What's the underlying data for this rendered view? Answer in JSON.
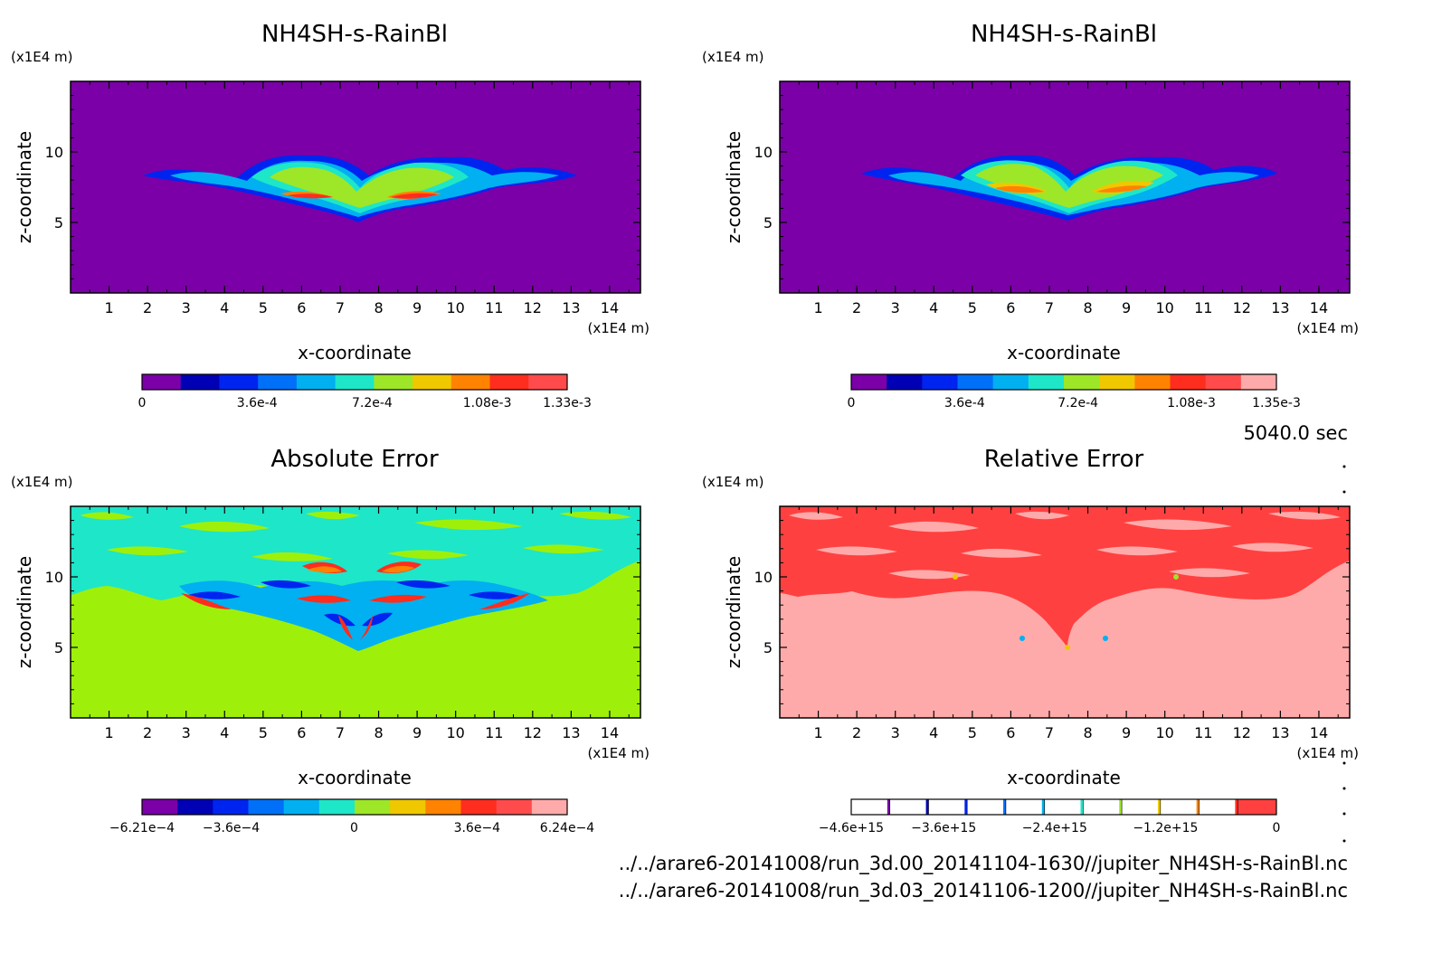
{
  "time_label": "5040.0 sec",
  "footer": {
    "file1": "../../arare6-20141008/run_3d.00_20141104-1630//jupiter_NH4SH-s-RainBl.nc",
    "file2": "../../arare6-20141008/run_3d.03_20141106-1200//jupiter_NH4SH-s-RainBl.nc"
  },
  "chart_data": [
    {
      "type": "heatmap",
      "title": "NH4SH-s-RainBl",
      "xlabel": "x-coordinate",
      "ylabel": "z-coordinate",
      "x_unit": "(x1E4 m)",
      "y_unit": "(x1E4 m)",
      "xlim": [
        0,
        14.8
      ],
      "ylim": [
        0,
        15
      ],
      "x_ticks": [
        "1",
        "2",
        "3",
        "4",
        "5",
        "6",
        "7",
        "8",
        "9",
        "10",
        "11",
        "12",
        "13",
        "14"
      ],
      "y_ticks": [
        "5",
        "10"
      ],
      "colorbar": {
        "colors": [
          "#7b00a8",
          "#0000b4",
          "#0024f0",
          "#0070f8",
          "#00b0f0",
          "#1ee6c8",
          "#9ee628",
          "#f0c800",
          "#ff8200",
          "#ff2d1e",
          "#ff4b4b"
        ],
        "tick_labels": [
          "0",
          "3.6e-4",
          "7.2e-4",
          "1.08e-3",
          "1.33e-3"
        ],
        "tick_values": [
          0,
          0.00036,
          0.00072,
          0.00108,
          0.00133
        ],
        "range": [
          0,
          0.00133
        ]
      },
      "background": "#7b00a8"
    },
    {
      "type": "heatmap",
      "title": "NH4SH-s-RainBl",
      "xlabel": "x-coordinate",
      "ylabel": "z-coordinate",
      "x_unit": "(x1E4 m)",
      "y_unit": "(x1E4 m)",
      "xlim": [
        0,
        14.8
      ],
      "ylim": [
        0,
        15
      ],
      "x_ticks": [
        "1",
        "2",
        "3",
        "4",
        "5",
        "6",
        "7",
        "8",
        "9",
        "10",
        "11",
        "12",
        "13",
        "14"
      ],
      "y_ticks": [
        "5",
        "10"
      ],
      "colorbar": {
        "colors": [
          "#7b00a8",
          "#0000b4",
          "#0024f0",
          "#0070f8",
          "#00b0f0",
          "#1ee6c8",
          "#9ee628",
          "#f0c800",
          "#ff8200",
          "#ff2d1e",
          "#ff4b4b",
          "#ffaaaa"
        ],
        "tick_labels": [
          "0",
          "3.6e-4",
          "7.2e-4",
          "1.08e-3",
          "1.35e-3"
        ],
        "tick_values": [
          0,
          0.00036,
          0.00072,
          0.00108,
          0.00135
        ],
        "range": [
          0,
          0.00135
        ]
      },
      "background": "#7b00a8"
    },
    {
      "type": "heatmap",
      "title": "Absolute Error",
      "xlabel": "x-coordinate",
      "ylabel": "z-coordinate",
      "x_unit": "(x1E4 m)",
      "y_unit": "(x1E4 m)",
      "xlim": [
        0,
        14.8
      ],
      "ylim": [
        0,
        15
      ],
      "x_ticks": [
        "1",
        "2",
        "3",
        "4",
        "5",
        "6",
        "7",
        "8",
        "9",
        "10",
        "11",
        "12",
        "13",
        "14"
      ],
      "y_ticks": [
        "5",
        "10"
      ],
      "colorbar": {
        "colors": [
          "#7b00a8",
          "#0000b4",
          "#0024f0",
          "#0070f8",
          "#00b0f0",
          "#1ee6c8",
          "#9ee628",
          "#f0c800",
          "#ff8200",
          "#ff2d1e",
          "#ff4b4b",
          "#ffaaaa"
        ],
        "tick_labels": [
          "−6.21e−4",
          "−3.6e−4",
          "0",
          "3.6e−4",
          "6.24e−4"
        ],
        "tick_values": [
          -0.000621,
          -0.00036,
          0,
          0.00036,
          0.000624
        ],
        "range": [
          -0.000621,
          0.000624
        ]
      },
      "background": "#9ef00a"
    },
    {
      "type": "heatmap",
      "title": "Relative Error",
      "xlabel": "x-coordinate",
      "ylabel": "z-coordinate",
      "x_unit": "(x1E4 m)",
      "y_unit": "(x1E4 m)",
      "xlim": [
        0,
        14.8
      ],
      "ylim": [
        0,
        15
      ],
      "x_ticks": [
        "1",
        "2",
        "3",
        "4",
        "5",
        "6",
        "7",
        "8",
        "9",
        "10",
        "11",
        "12",
        "13",
        "14"
      ],
      "y_ticks": [
        "5",
        "10"
      ],
      "colorbar": {
        "colors": [
          "#ffffff",
          "#ffffff",
          "#ffffff",
          "#ffffff",
          "#ffffff",
          "#ffffff",
          "#ffffff",
          "#ffffff",
          "#ffffff",
          "#ffffff",
          "#ff4040"
        ],
        "line_colors": [
          "#7b00a8",
          "#0000b4",
          "#0024f0",
          "#0070f8",
          "#00b0f0",
          "#1ee6c8",
          "#9ee628",
          "#f0c800",
          "#ff8200",
          "#ff2d1e"
        ],
        "tick_labels": [
          "−4.6e+15",
          "−3.6e+15",
          "−2.4e+15",
          "−1.2e+15",
          "0"
        ],
        "tick_values": [
          -4600000000000000.0,
          -3600000000000000.0,
          -2400000000000000.0,
          -1200000000000000.0,
          0
        ],
        "range": [
          -4600000000000000.0,
          0
        ]
      },
      "background": "#ffaaaa"
    }
  ]
}
